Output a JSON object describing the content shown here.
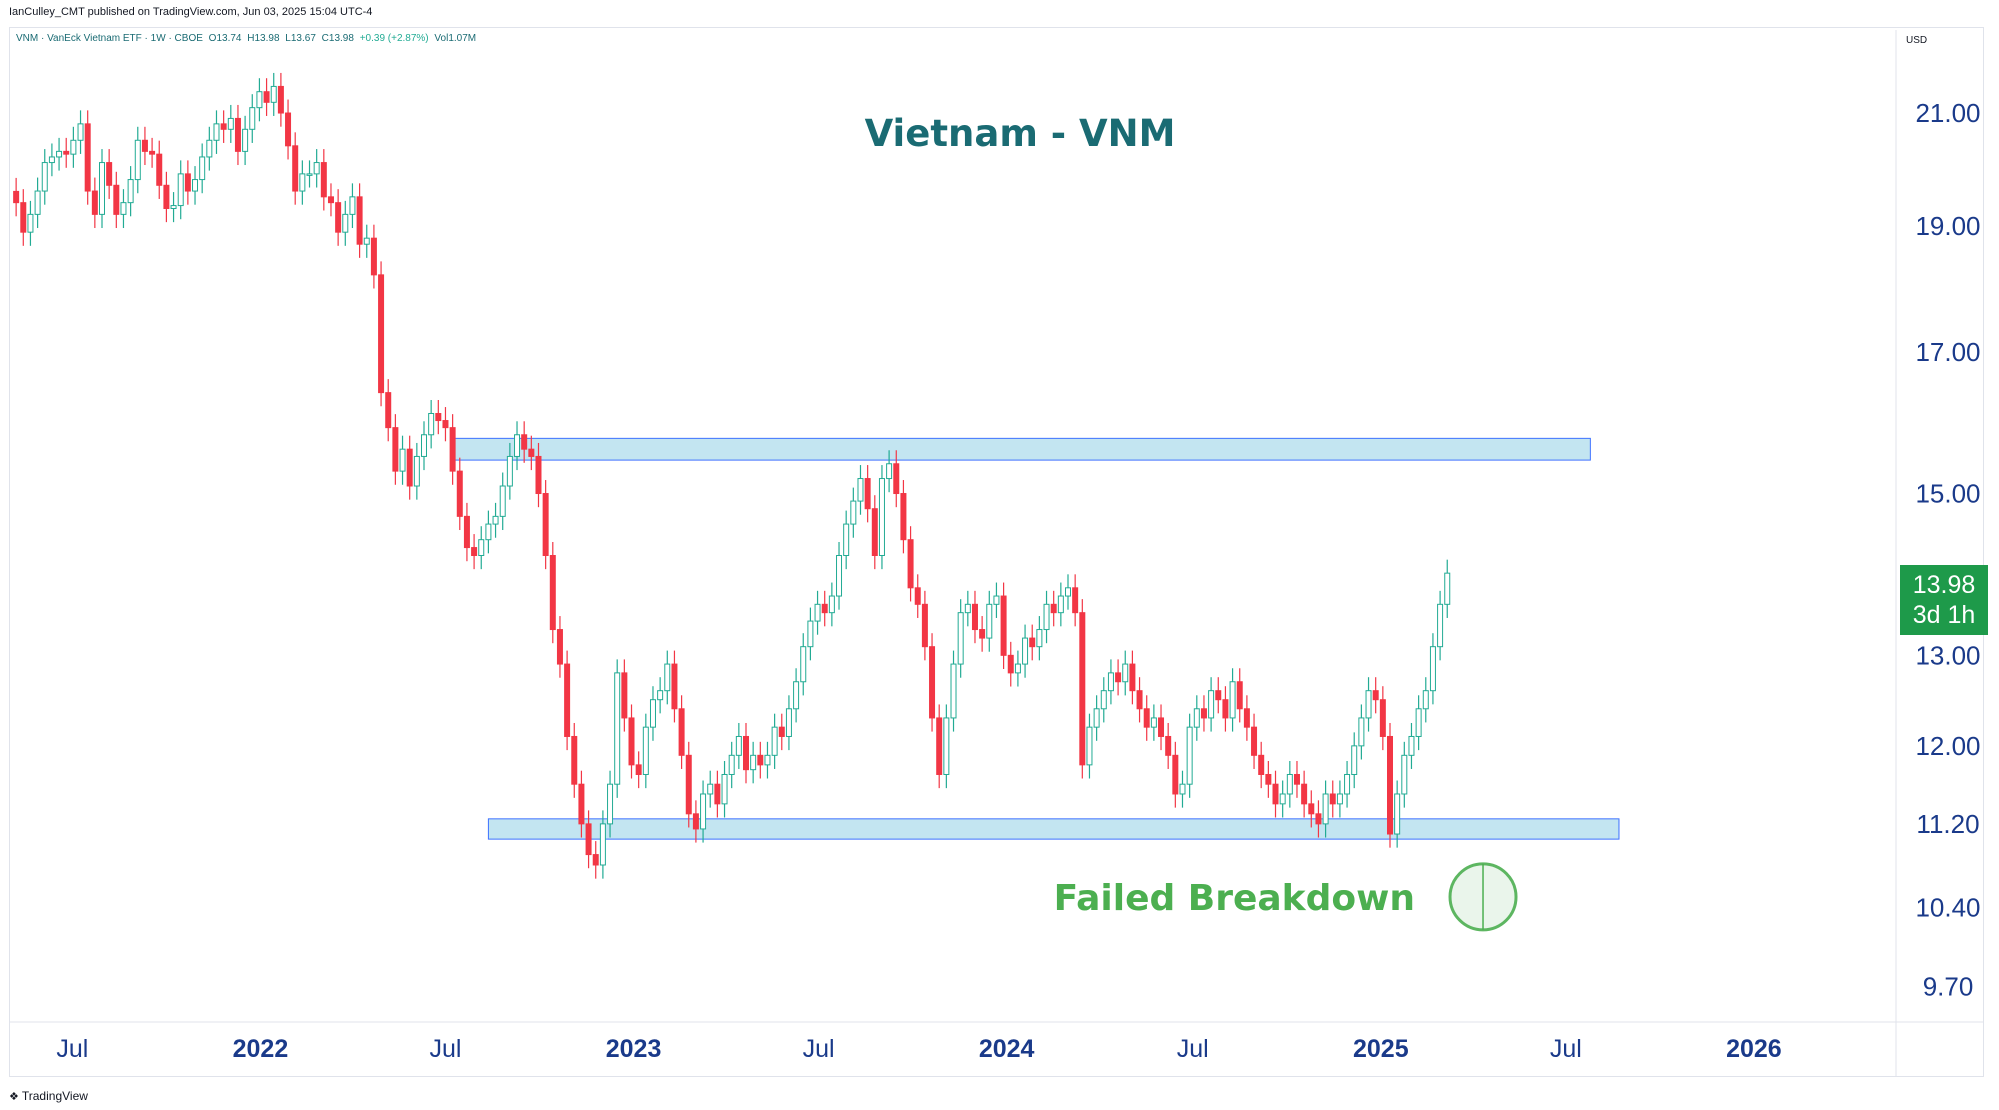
{
  "publisher": "IanCulley_CMT published on TradingView.com, Jun 03, 2025 15:04 UTC-4",
  "legend": {
    "symbol": "VNM · VanEck Vietnam ETF · 1W · CBOE",
    "open": "O13.74",
    "high": "H13.98",
    "low": "L13.67",
    "close": "C13.98",
    "change": "+0.39 (+2.87%)",
    "volume": "Vol1.07M"
  },
  "currency": "USD",
  "price_badge": {
    "price": "13.98",
    "countdown": "3d 1h"
  },
  "branding": {
    "name": "TradingView",
    "icon": "tradingview-logo-icon"
  },
  "colors": {
    "up": "#22ab94",
    "down": "#f23645",
    "title": "#1a6b73",
    "annotation": "#4caf50",
    "zone_fill": "#bde3f0",
    "zone_stroke": "#2962ff",
    "axis_text": "#1a3a8a",
    "badge": "#1e9a4a"
  },
  "chart_data": {
    "type": "candlestick",
    "title": "Vietnam - VNM",
    "interval": "1W",
    "y_scale": "log",
    "ylim": [
      9.4,
      22.6
    ],
    "y_ticks": [
      9.7,
      10.4,
      11.2,
      12.0,
      13.0,
      15.0,
      17.0,
      19.0,
      21.0
    ],
    "y_tick_labels": [
      "9.70",
      "10.40",
      "11.20",
      "12.00",
      "13.00",
      "15.00",
      "17.00",
      "19.00",
      "21.00"
    ],
    "x_range": [
      "2021-05-01",
      "2026-05-20"
    ],
    "x_ticks": [
      {
        "date": "2021-07-01",
        "label": "Jul",
        "bold": false
      },
      {
        "date": "2022-01-01",
        "label": "2022",
        "bold": true
      },
      {
        "date": "2022-07-01",
        "label": "Jul",
        "bold": false
      },
      {
        "date": "2023-01-01",
        "label": "2023",
        "bold": true
      },
      {
        "date": "2023-07-01",
        "label": "Jul",
        "bold": false
      },
      {
        "date": "2024-01-01",
        "label": "2024",
        "bold": true
      },
      {
        "date": "2024-07-01",
        "label": "Jul",
        "bold": false
      },
      {
        "date": "2025-01-01",
        "label": "2025",
        "bold": true
      },
      {
        "date": "2025-07-01",
        "label": "Jul",
        "bold": false
      },
      {
        "date": "2026-01-01",
        "label": "2026",
        "bold": true
      }
    ],
    "closes": [
      19.4,
      18.9,
      19.2,
      19.6,
      20.1,
      20.2,
      20.3,
      20.25,
      20.5,
      20.8,
      19.6,
      19.2,
      20.1,
      19.7,
      19.2,
      19.4,
      19.8,
      20.5,
      20.3,
      20.25,
      19.7,
      19.3,
      19.35,
      19.9,
      19.6,
      19.8,
      20.2,
      20.5,
      20.8,
      20.7,
      20.9,
      20.3,
      20.7,
      21.1,
      21.4,
      21.2,
      21.5,
      21.0,
      20.4,
      19.6,
      19.9,
      19.9,
      20.1,
      19.5,
      19.4,
      18.9,
      19.2,
      19.5,
      18.7,
      18.8,
      18.2,
      16.4,
      15.9,
      15.3,
      15.6,
      15.1,
      15.5,
      15.8,
      16.1,
      16.0,
      15.9,
      15.3,
      14.7,
      14.3,
      14.2,
      14.4,
      14.6,
      14.7,
      15.1,
      15.5,
      15.8,
      15.6,
      15.5,
      15.0,
      14.2,
      13.3,
      12.9,
      12.1,
      11.6,
      11.2,
      10.9,
      10.8,
      11.2,
      11.6,
      12.8,
      12.3,
      11.8,
      11.7,
      12.2,
      12.5,
      12.6,
      12.9,
      12.4,
      11.9,
      11.3,
      11.15,
      11.5,
      11.6,
      11.4,
      11.7,
      11.9,
      12.1,
      11.75,
      11.9,
      11.8,
      11.9,
      12.2,
      12.1,
      12.4,
      12.7,
      13.1,
      13.4,
      13.6,
      13.5,
      13.7,
      14.2,
      14.6,
      14.9,
      15.2,
      14.8,
      14.2,
      15.2,
      15.4,
      15.0,
      14.4,
      13.8,
      13.6,
      13.1,
      12.3,
      11.7,
      12.3,
      12.9,
      13.5,
      13.6,
      13.3,
      13.2,
      13.6,
      13.7,
      13.0,
      12.8,
      12.9,
      13.2,
      13.1,
      13.3,
      13.6,
      13.5,
      13.7,
      13.8,
      13.5,
      11.8,
      12.2,
      12.4,
      12.6,
      12.8,
      12.7,
      12.9,
      12.6,
      12.4,
      12.2,
      12.3,
      12.1,
      11.9,
      11.5,
      11.6,
      12.2,
      12.4,
      12.3,
      12.6,
      12.5,
      12.3,
      12.7,
      12.4,
      12.2,
      11.9,
      11.7,
      11.6,
      11.4,
      11.5,
      11.7,
      11.6,
      11.4,
      11.3,
      11.2,
      11.5,
      11.4,
      11.5,
      11.7,
      12.0,
      12.3,
      12.6,
      12.5,
      12.1,
      11.1,
      11.5,
      11.9,
      12.1,
      12.4,
      12.6,
      13.1,
      13.6,
      13.98
    ],
    "levels": [
      {
        "name": "resistance",
        "low": 15.45,
        "high": 15.75,
        "from": "2022-07-08",
        "to": "2025-07-25"
      },
      {
        "name": "support",
        "low": 11.05,
        "high": 11.25,
        "from": "2022-08-12",
        "to": "2025-08-22"
      }
    ],
    "annotations": [
      {
        "text": "Failed Breakdown",
        "date": "2025-04-11",
        "price": 10.5,
        "kind": "circle"
      }
    ]
  }
}
